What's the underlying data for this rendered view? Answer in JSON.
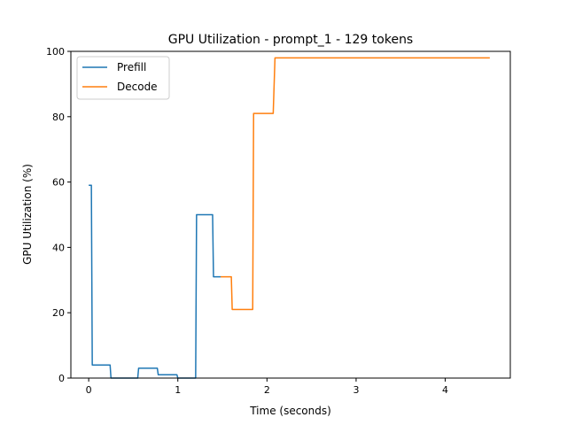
{
  "chart_data": {
    "type": "line",
    "title": "GPU Utilization - prompt_1 - 129 tokens",
    "xlabel": "Time (seconds)",
    "ylabel": "GPU Utilization (%)",
    "xlim": [
      -0.2,
      4.73
    ],
    "ylim": [
      0,
      100
    ],
    "xticks": [
      0,
      1,
      2,
      3,
      4
    ],
    "yticks": [
      0,
      20,
      40,
      60,
      80,
      100
    ],
    "grid": false,
    "legend_position": "top-left",
    "series": [
      {
        "name": "Prefill",
        "color": "#1f77b4",
        "x": [
          0.0,
          0.03,
          0.04,
          0.24,
          0.25,
          0.55,
          0.56,
          0.77,
          0.78,
          0.99,
          1.0,
          1.2,
          1.21,
          1.39,
          1.4,
          1.48
        ],
        "y": [
          59,
          59,
          4,
          4,
          0,
          0,
          3,
          3,
          1,
          1,
          0,
          0,
          50,
          50,
          31,
          31
        ]
      },
      {
        "name": "Decode",
        "color": "#ff7f0e",
        "x": [
          1.48,
          1.6,
          1.61,
          1.84,
          1.85,
          2.07,
          2.09,
          4.5
        ],
        "y": [
          31,
          31,
          21,
          21,
          81,
          81,
          98,
          98
        ]
      }
    ]
  }
}
